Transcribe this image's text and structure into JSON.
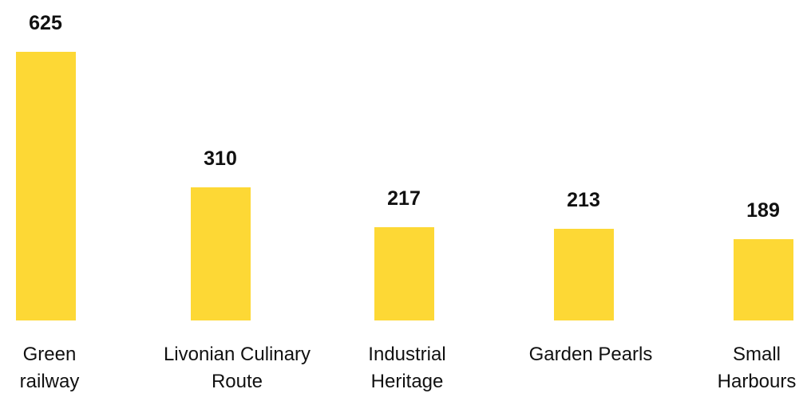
{
  "chart_data": {
    "type": "bar",
    "categories": [
      "Green railway",
      "Livonian Culinary Route",
      "Industrial Heritage",
      "Garden Pearls",
      "Small Harbours"
    ],
    "values": [
      625,
      310,
      217,
      213,
      189
    ],
    "color": "#fdd835"
  }
}
